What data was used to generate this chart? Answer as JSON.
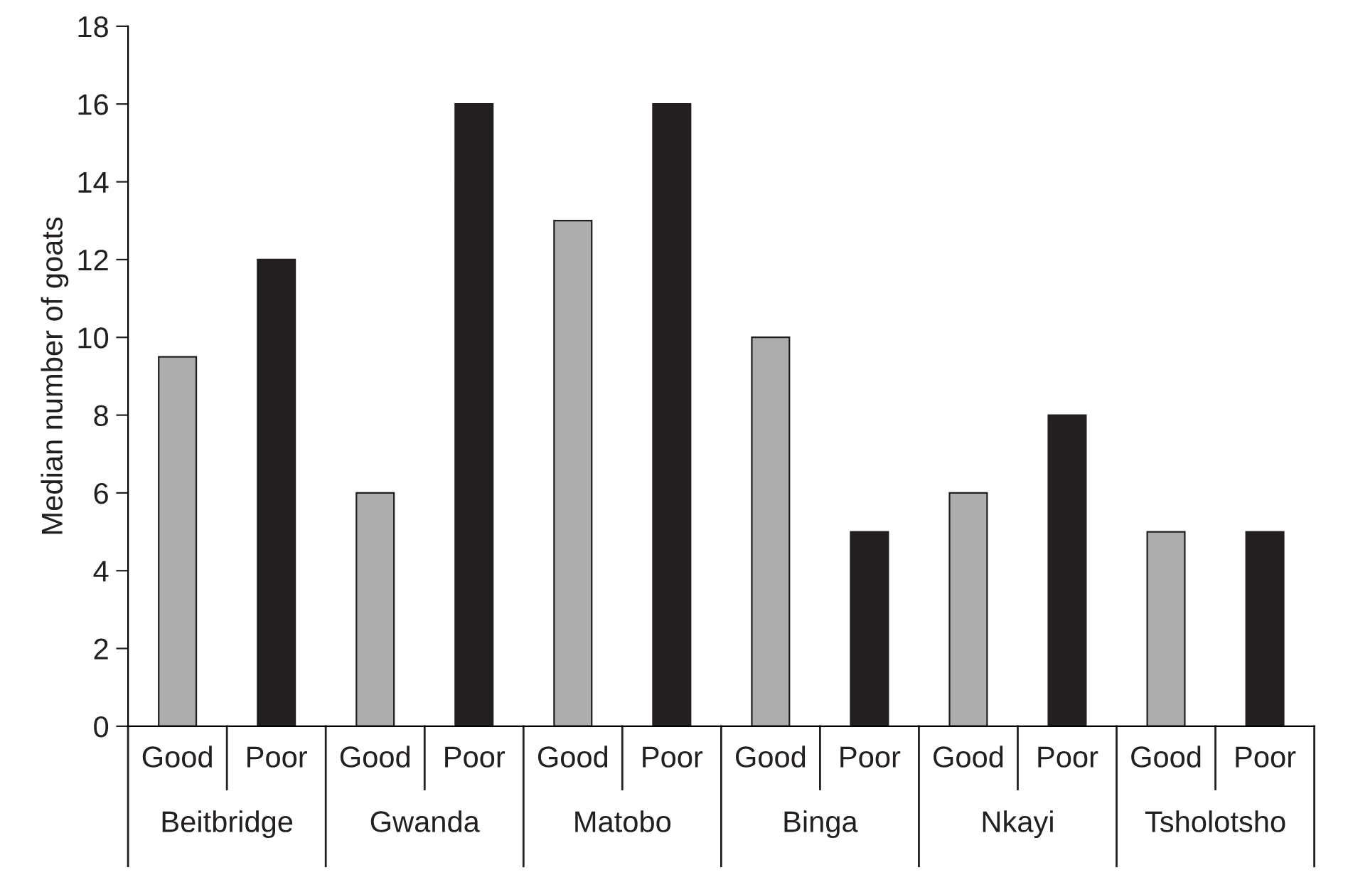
{
  "chart_data": {
    "type": "bar",
    "ylabel": "Median number of goats",
    "categories": [
      "Good",
      "Poor",
      "Good",
      "Poor",
      "Good",
      "Poor",
      "Good",
      "Poor",
      "Good",
      "Poor",
      "Good",
      "Poor"
    ],
    "values": [
      9.5,
      12,
      6,
      16,
      13,
      16,
      10,
      5,
      6,
      8,
      5,
      5
    ],
    "colors": [
      "#adadad",
      "#231f20",
      "#adadad",
      "#231f20",
      "#adadad",
      "#231f20",
      "#adadad",
      "#231f20",
      "#adadad",
      "#231f20",
      "#adadad",
      "#231f20"
    ],
    "annotations": [
      "Beitbridge",
      "Gwanda",
      "Matobo",
      "Binga",
      "Nkayi",
      "Tsholotsho"
    ],
    "ylim": [
      0,
      18
    ],
    "yticks": [
      0,
      2,
      4,
      6,
      8,
      10,
      12,
      14,
      16,
      18
    ],
    "grid": false
  }
}
